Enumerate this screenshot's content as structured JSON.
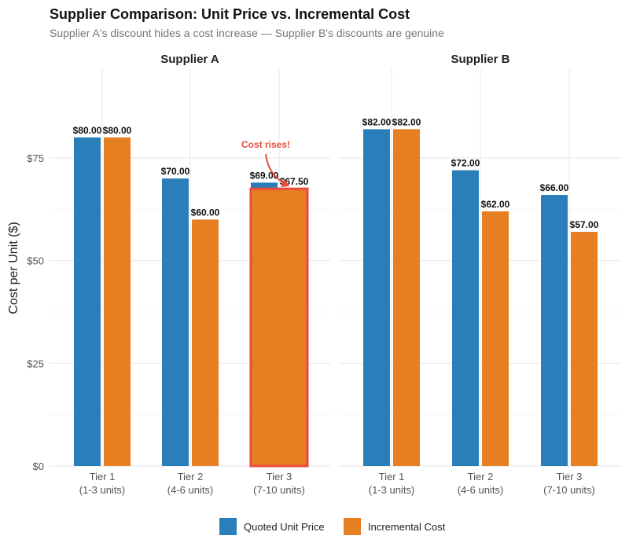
{
  "chart_data": {
    "type": "bar",
    "title": "Supplier Comparison: Unit Price vs. Incremental Cost",
    "subtitle": "Supplier A's discount hides a cost increase — Supplier B's discounts are genuine",
    "ylabel": "Cost per Unit ($)",
    "xlabel": "",
    "ylim": [
      0,
      90
    ],
    "yticks": [
      0,
      25,
      50,
      75
    ],
    "ytick_labels": [
      "$0",
      "$25",
      "$50",
      "$75"
    ],
    "grid": true,
    "legend_position": "bottom",
    "categories": [
      "Tier 1\n(1-3 units)",
      "Tier 2\n(4-6 units)",
      "Tier 3\n(7-10 units)"
    ],
    "colors": {
      "Quoted Unit Price": "#2a7fba",
      "Incremental Cost": "#e67e22",
      "highlight": "#e74c3c"
    },
    "panels": [
      {
        "name": "Supplier A",
        "series": [
          {
            "name": "Quoted Unit Price",
            "values": [
              80,
              70,
              69
            ],
            "labels": [
              "$80.00",
              "$70.00",
              "$69.00"
            ]
          },
          {
            "name": "Incremental Cost",
            "values": [
              80,
              60,
              67.5
            ],
            "labels": [
              "$80.00",
              "$60.00",
              "$67.50"
            ]
          }
        ],
        "annotation": {
          "text": "Cost rises!",
          "category_index": 2
        }
      },
      {
        "name": "Supplier B",
        "series": [
          {
            "name": "Quoted Unit Price",
            "values": [
              82,
              72,
              66
            ],
            "labels": [
              "$82.00",
              "$72.00",
              "$66.00"
            ]
          },
          {
            "name": "Incremental Cost",
            "values": [
              82,
              62,
              57
            ],
            "labels": [
              "$82.00",
              "$62.00",
              "$57.00"
            ]
          }
        ]
      }
    ],
    "legend": [
      "Quoted Unit Price",
      "Incremental Cost"
    ]
  }
}
